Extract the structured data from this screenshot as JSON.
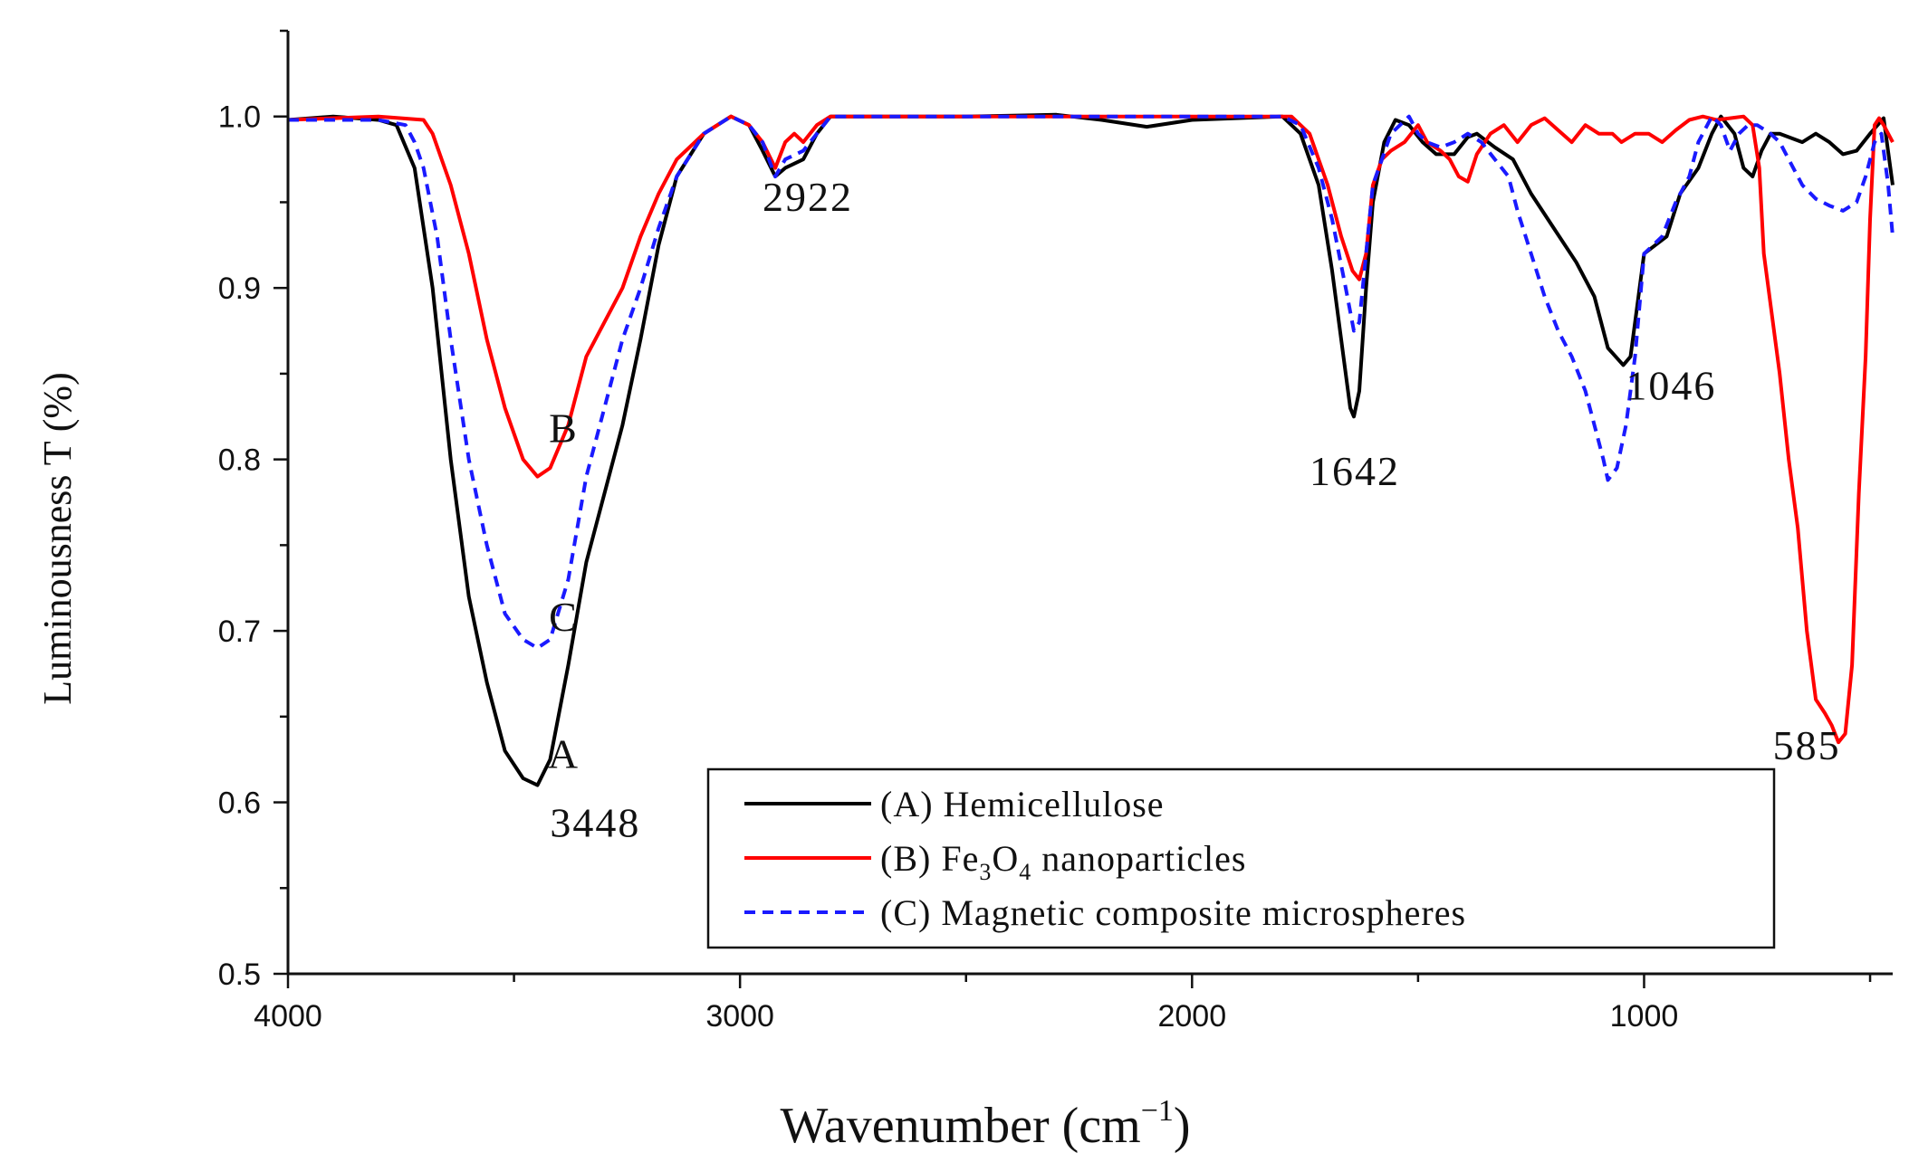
{
  "chart_data": {
    "type": "line",
    "title": "",
    "xlabel": "Wavenumber (cm",
    "xlabel_sup": "−1",
    "xlabel_close": ")",
    "ylabel": "Luminousness T (%)",
    "xlim": [
      4000,
      450
    ],
    "ylim": [
      0.5,
      1.05
    ],
    "xticks": [
      4000,
      3000,
      2000,
      1000
    ],
    "xtick_labels": [
      "4000",
      "3000",
      "2000",
      "1000"
    ],
    "yticks": [
      0.5,
      0.6,
      0.7,
      0.8,
      0.9,
      1.0
    ],
    "ytick_labels": [
      "0.5",
      "0.6",
      "0.7",
      "0.8",
      "0.9",
      "1.0"
    ],
    "legend": [
      {
        "label": "(A)  Hemicellulose",
        "color": "#000000",
        "dash": "solid"
      },
      {
        "label_pre": "(B)  Fe",
        "sub1": "3",
        "mid": "O",
        "sub2": "4",
        "label_post": " nanoparticles",
        "color": "#ff0000",
        "dash": "solid"
      },
      {
        "label": "(C)  Magnetic composite microspheres",
        "color": "#1a1aff",
        "dash": "dashed"
      }
    ],
    "annotations": [
      {
        "text": "B",
        "x": 3390,
        "y": 0.81
      },
      {
        "text": "C",
        "x": 3390,
        "y": 0.7
      },
      {
        "text": "A",
        "x": 3390,
        "y": 0.62
      },
      {
        "text": "3448",
        "x": 3320,
        "y": 0.58
      },
      {
        "text": "2922",
        "x": 2850,
        "y": 0.945
      },
      {
        "text": "1642",
        "x": 1640,
        "y": 0.785
      },
      {
        "text": "1046",
        "x": 940,
        "y": 0.835
      },
      {
        "text": "585",
        "x": 640,
        "y": 0.625
      }
    ],
    "series": [
      {
        "name": "(A) Hemicellulose",
        "color": "#000000",
        "dash": "solid",
        "points": [
          [
            4000,
            0.998
          ],
          [
            3900,
            1.0
          ],
          [
            3800,
            0.998
          ],
          [
            3760,
            0.995
          ],
          [
            3720,
            0.97
          ],
          [
            3680,
            0.9
          ],
          [
            3640,
            0.8
          ],
          [
            3600,
            0.72
          ],
          [
            3560,
            0.67
          ],
          [
            3520,
            0.63
          ],
          [
            3480,
            0.614
          ],
          [
            3448,
            0.61
          ],
          [
            3420,
            0.625
          ],
          [
            3380,
            0.68
          ],
          [
            3340,
            0.74
          ],
          [
            3300,
            0.78
          ],
          [
            3260,
            0.82
          ],
          [
            3220,
            0.87
          ],
          [
            3180,
            0.925
          ],
          [
            3140,
            0.965
          ],
          [
            3080,
            0.99
          ],
          [
            3020,
            1.0
          ],
          [
            2980,
            0.995
          ],
          [
            2950,
            0.98
          ],
          [
            2922,
            0.965
          ],
          [
            2900,
            0.97
          ],
          [
            2860,
            0.975
          ],
          [
            2830,
            0.99
          ],
          [
            2800,
            1.0
          ],
          [
            2500,
            1.0
          ],
          [
            2300,
            1.001
          ],
          [
            2200,
            0.998
          ],
          [
            2100,
            0.994
          ],
          [
            2000,
            0.998
          ],
          [
            1800,
            1.0
          ],
          [
            1760,
            0.99
          ],
          [
            1720,
            0.96
          ],
          [
            1690,
            0.91
          ],
          [
            1665,
            0.86
          ],
          [
            1650,
            0.83
          ],
          [
            1642,
            0.825
          ],
          [
            1630,
            0.84
          ],
          [
            1615,
            0.9
          ],
          [
            1600,
            0.95
          ],
          [
            1575,
            0.985
          ],
          [
            1550,
            0.998
          ],
          [
            1520,
            0.995
          ],
          [
            1490,
            0.985
          ],
          [
            1460,
            0.978
          ],
          [
            1420,
            0.978
          ],
          [
            1390,
            0.988
          ],
          [
            1370,
            0.99
          ],
          [
            1330,
            0.982
          ],
          [
            1290,
            0.975
          ],
          [
            1250,
            0.955
          ],
          [
            1200,
            0.935
          ],
          [
            1150,
            0.915
          ],
          [
            1110,
            0.895
          ],
          [
            1080,
            0.865
          ],
          [
            1046,
            0.855
          ],
          [
            1030,
            0.86
          ],
          [
            1000,
            0.92
          ],
          [
            950,
            0.93
          ],
          [
            920,
            0.955
          ],
          [
            880,
            0.97
          ],
          [
            850,
            0.99
          ],
          [
            830,
            1.0
          ],
          [
            800,
            0.99
          ],
          [
            780,
            0.97
          ],
          [
            760,
            0.965
          ],
          [
            740,
            0.98
          ],
          [
            720,
            0.99
          ],
          [
            700,
            0.99
          ],
          [
            650,
            0.985
          ],
          [
            620,
            0.99
          ],
          [
            590,
            0.985
          ],
          [
            560,
            0.978
          ],
          [
            530,
            0.98
          ],
          [
            500,
            0.99
          ],
          [
            470,
            0.999
          ],
          [
            450,
            0.96
          ]
        ]
      },
      {
        "name": "(B) Fe3O4 nanoparticles",
        "color": "#ff0000",
        "dash": "solid",
        "points": [
          [
            4000,
            0.998
          ],
          [
            3800,
            1.0
          ],
          [
            3700,
            0.998
          ],
          [
            3680,
            0.99
          ],
          [
            3640,
            0.96
          ],
          [
            3600,
            0.92
          ],
          [
            3560,
            0.87
          ],
          [
            3520,
            0.83
          ],
          [
            3480,
            0.8
          ],
          [
            3448,
            0.79
          ],
          [
            3420,
            0.795
          ],
          [
            3380,
            0.82
          ],
          [
            3340,
            0.86
          ],
          [
            3300,
            0.88
          ],
          [
            3260,
            0.9
          ],
          [
            3220,
            0.93
          ],
          [
            3180,
            0.955
          ],
          [
            3140,
            0.975
          ],
          [
            3080,
            0.99
          ],
          [
            3020,
            1.0
          ],
          [
            2980,
            0.995
          ],
          [
            2950,
            0.985
          ],
          [
            2922,
            0.97
          ],
          [
            2900,
            0.985
          ],
          [
            2880,
            0.99
          ],
          [
            2860,
            0.985
          ],
          [
            2830,
            0.995
          ],
          [
            2800,
            1.0
          ],
          [
            2500,
            1.0
          ],
          [
            2300,
            1.0
          ],
          [
            2000,
            1.0
          ],
          [
            1780,
            1.0
          ],
          [
            1740,
            0.99
          ],
          [
            1700,
            0.96
          ],
          [
            1670,
            0.93
          ],
          [
            1645,
            0.91
          ],
          [
            1630,
            0.905
          ],
          [
            1615,
            0.92
          ],
          [
            1600,
            0.96
          ],
          [
            1580,
            0.975
          ],
          [
            1560,
            0.98
          ],
          [
            1530,
            0.985
          ],
          [
            1500,
            0.995
          ],
          [
            1480,
            0.985
          ],
          [
            1450,
            0.98
          ],
          [
            1430,
            0.975
          ],
          [
            1410,
            0.965
          ],
          [
            1390,
            0.962
          ],
          [
            1370,
            0.978
          ],
          [
            1340,
            0.99
          ],
          [
            1310,
            0.995
          ],
          [
            1280,
            0.985
          ],
          [
            1250,
            0.995
          ],
          [
            1220,
            0.999
          ],
          [
            1190,
            0.992
          ],
          [
            1160,
            0.985
          ],
          [
            1130,
            0.995
          ],
          [
            1100,
            0.99
          ],
          [
            1070,
            0.99
          ],
          [
            1050,
            0.985
          ],
          [
            1020,
            0.99
          ],
          [
            990,
            0.99
          ],
          [
            960,
            0.985
          ],
          [
            930,
            0.992
          ],
          [
            900,
            0.998
          ],
          [
            870,
            1.0
          ],
          [
            840,
            0.998
          ],
          [
            810,
            0.999
          ],
          [
            780,
            1.0
          ],
          [
            760,
            0.995
          ],
          [
            745,
            0.97
          ],
          [
            735,
            0.92
          ],
          [
            720,
            0.89
          ],
          [
            700,
            0.85
          ],
          [
            680,
            0.8
          ],
          [
            660,
            0.76
          ],
          [
            640,
            0.7
          ],
          [
            620,
            0.66
          ],
          [
            600,
            0.652
          ],
          [
            585,
            0.645
          ],
          [
            570,
            0.635
          ],
          [
            555,
            0.64
          ],
          [
            540,
            0.68
          ],
          [
            525,
            0.78
          ],
          [
            510,
            0.86
          ],
          [
            500,
            0.94
          ],
          [
            490,
            0.995
          ],
          [
            480,
            0.999
          ],
          [
            470,
            0.995
          ],
          [
            450,
            0.985
          ]
        ]
      },
      {
        "name": "(C) Magnetic composite microspheres",
        "color": "#1a1aff",
        "dash": "dashed",
        "points": [
          [
            4000,
            0.998
          ],
          [
            3900,
            0.998
          ],
          [
            3800,
            0.998
          ],
          [
            3740,
            0.995
          ],
          [
            3720,
            0.985
          ],
          [
            3700,
            0.97
          ],
          [
            3670,
            0.93
          ],
          [
            3640,
            0.87
          ],
          [
            3600,
            0.8
          ],
          [
            3560,
            0.75
          ],
          [
            3520,
            0.71
          ],
          [
            3480,
            0.695
          ],
          [
            3448,
            0.69
          ],
          [
            3420,
            0.695
          ],
          [
            3380,
            0.73
          ],
          [
            3340,
            0.79
          ],
          [
            3300,
            0.83
          ],
          [
            3260,
            0.87
          ],
          [
            3220,
            0.9
          ],
          [
            3180,
            0.935
          ],
          [
            3140,
            0.965
          ],
          [
            3080,
            0.99
          ],
          [
            3020,
            1.0
          ],
          [
            2980,
            0.995
          ],
          [
            2950,
            0.985
          ],
          [
            2922,
            0.965
          ],
          [
            2900,
            0.975
          ],
          [
            2860,
            0.98
          ],
          [
            2830,
            0.99
          ],
          [
            2800,
            1.0
          ],
          [
            2500,
            1.0
          ],
          [
            2300,
            1.0
          ],
          [
            2000,
            1.0
          ],
          [
            1800,
            1.0
          ],
          [
            1760,
            0.995
          ],
          [
            1720,
            0.97
          ],
          [
            1690,
            0.94
          ],
          [
            1660,
            0.9
          ],
          [
            1642,
            0.875
          ],
          [
            1630,
            0.88
          ],
          [
            1615,
            0.92
          ],
          [
            1600,
            0.96
          ],
          [
            1580,
            0.975
          ],
          [
            1560,
            0.99
          ],
          [
            1520,
            1.0
          ],
          [
            1500,
            0.99
          ],
          [
            1480,
            0.985
          ],
          [
            1450,
            0.982
          ],
          [
            1420,
            0.985
          ],
          [
            1390,
            0.99
          ],
          [
            1360,
            0.985
          ],
          [
            1330,
            0.975
          ],
          [
            1300,
            0.965
          ],
          [
            1280,
            0.945
          ],
          [
            1250,
            0.92
          ],
          [
            1220,
            0.895
          ],
          [
            1190,
            0.875
          ],
          [
            1160,
            0.86
          ],
          [
            1130,
            0.84
          ],
          [
            1110,
            0.82
          ],
          [
            1090,
            0.8
          ],
          [
            1080,
            0.788
          ],
          [
            1060,
            0.795
          ],
          [
            1040,
            0.82
          ],
          [
            1020,
            0.86
          ],
          [
            1000,
            0.92
          ],
          [
            960,
            0.93
          ],
          [
            930,
            0.95
          ],
          [
            900,
            0.965
          ],
          [
            880,
            0.985
          ],
          [
            860,
            0.995
          ],
          [
            850,
            1.0
          ],
          [
            830,
            0.995
          ],
          [
            810,
            0.98
          ],
          [
            790,
            0.99
          ],
          [
            770,
            0.995
          ],
          [
            750,
            0.995
          ],
          [
            720,
            0.99
          ],
          [
            700,
            0.985
          ],
          [
            680,
            0.975
          ],
          [
            650,
            0.96
          ],
          [
            620,
            0.952
          ],
          [
            590,
            0.948
          ],
          [
            560,
            0.945
          ],
          [
            530,
            0.95
          ],
          [
            510,
            0.965
          ],
          [
            490,
            0.985
          ],
          [
            475,
            0.99
          ],
          [
            460,
            0.96
          ],
          [
            450,
            0.93
          ]
        ]
      }
    ]
  }
}
